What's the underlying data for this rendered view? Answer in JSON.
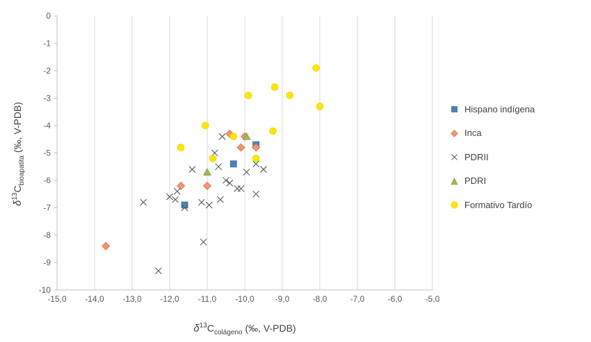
{
  "chart_data": {
    "type": "scatter",
    "title": "",
    "xlabel": {
      "prefix": "δ",
      "sup": "13",
      "base": "C",
      "sub": "colágeno",
      "suffix": " (‰, V-PDB)"
    },
    "ylabel": {
      "prefix": "δ",
      "sup": "13",
      "base": "C",
      "sub": "bioapatita",
      "suffix": " (‰, V-PDB)"
    },
    "xlim": [
      -15,
      -5
    ],
    "ylim": [
      -10,
      0
    ],
    "grid": {
      "vertical": true,
      "horizontal": false
    },
    "x_tick_labels": [
      "-15,0",
      "-14,0",
      "-13,0",
      "-12,0",
      "-11,0",
      "-10,0",
      "-9,0",
      "-8,0",
      "-7,0",
      "-6,0",
      "-5,0"
    ],
    "y_tick_labels": [
      "0",
      "-1",
      "-2",
      "-3",
      "-4",
      "-5",
      "-6",
      "-7",
      "-8",
      "-9",
      "-10"
    ],
    "legend_position": "right",
    "series": [
      {
        "name": "Hispano indígena",
        "marker": "square",
        "color": "#4F81BD",
        "points": [
          [
            -11.6,
            -6.9
          ],
          [
            -10.3,
            -5.4
          ],
          [
            -9.7,
            -4.7
          ]
        ]
      },
      {
        "name": "Inca",
        "marker": "diamond",
        "color": "#F4956A",
        "points": [
          [
            -13.7,
            -8.4
          ],
          [
            -11.7,
            -6.2
          ],
          [
            -11.0,
            -6.2
          ],
          [
            -10.4,
            -4.3
          ],
          [
            -10.1,
            -4.8
          ],
          [
            -10.0,
            -4.4
          ],
          [
            -9.7,
            -4.8
          ]
        ]
      },
      {
        "name": "PDRII",
        "marker": "x",
        "color": "#595959",
        "points": [
          [
            -12.7,
            -6.8
          ],
          [
            -12.3,
            -9.3
          ],
          [
            -12.0,
            -6.6
          ],
          [
            -11.85,
            -6.7
          ],
          [
            -11.8,
            -6.4
          ],
          [
            -11.6,
            -7.0
          ],
          [
            -11.4,
            -5.6
          ],
          [
            -11.15,
            -6.8
          ],
          [
            -11.1,
            -8.25
          ],
          [
            -10.95,
            -6.9
          ],
          [
            -10.8,
            -5.0
          ],
          [
            -10.7,
            -5.5
          ],
          [
            -10.65,
            -6.7
          ],
          [
            -10.6,
            -4.4
          ],
          [
            -10.5,
            -6.0
          ],
          [
            -10.4,
            -6.1
          ],
          [
            -10.2,
            -6.3
          ],
          [
            -10.1,
            -6.3
          ],
          [
            -9.95,
            -5.7
          ],
          [
            -9.7,
            -5.4
          ],
          [
            -9.7,
            -6.5
          ],
          [
            -9.5,
            -5.6
          ]
        ]
      },
      {
        "name": "PDRI",
        "marker": "triangle",
        "color": "#9BBB59",
        "points": [
          [
            -11.0,
            -5.7
          ],
          [
            -9.95,
            -4.4
          ]
        ]
      },
      {
        "name": "Formativo Tardío",
        "marker": "circle",
        "color": "#FFE600",
        "points": [
          [
            -11.7,
            -4.8
          ],
          [
            -11.05,
            -4.0
          ],
          [
            -10.85,
            -5.2
          ],
          [
            -10.3,
            -4.4
          ],
          [
            -9.9,
            -2.9
          ],
          [
            -9.7,
            -5.2
          ],
          [
            -9.25,
            -4.2
          ],
          [
            -9.2,
            -2.6
          ],
          [
            -8.8,
            -2.9
          ],
          [
            -8.1,
            -1.9
          ],
          [
            -8.0,
            -3.3
          ]
        ]
      }
    ]
  }
}
